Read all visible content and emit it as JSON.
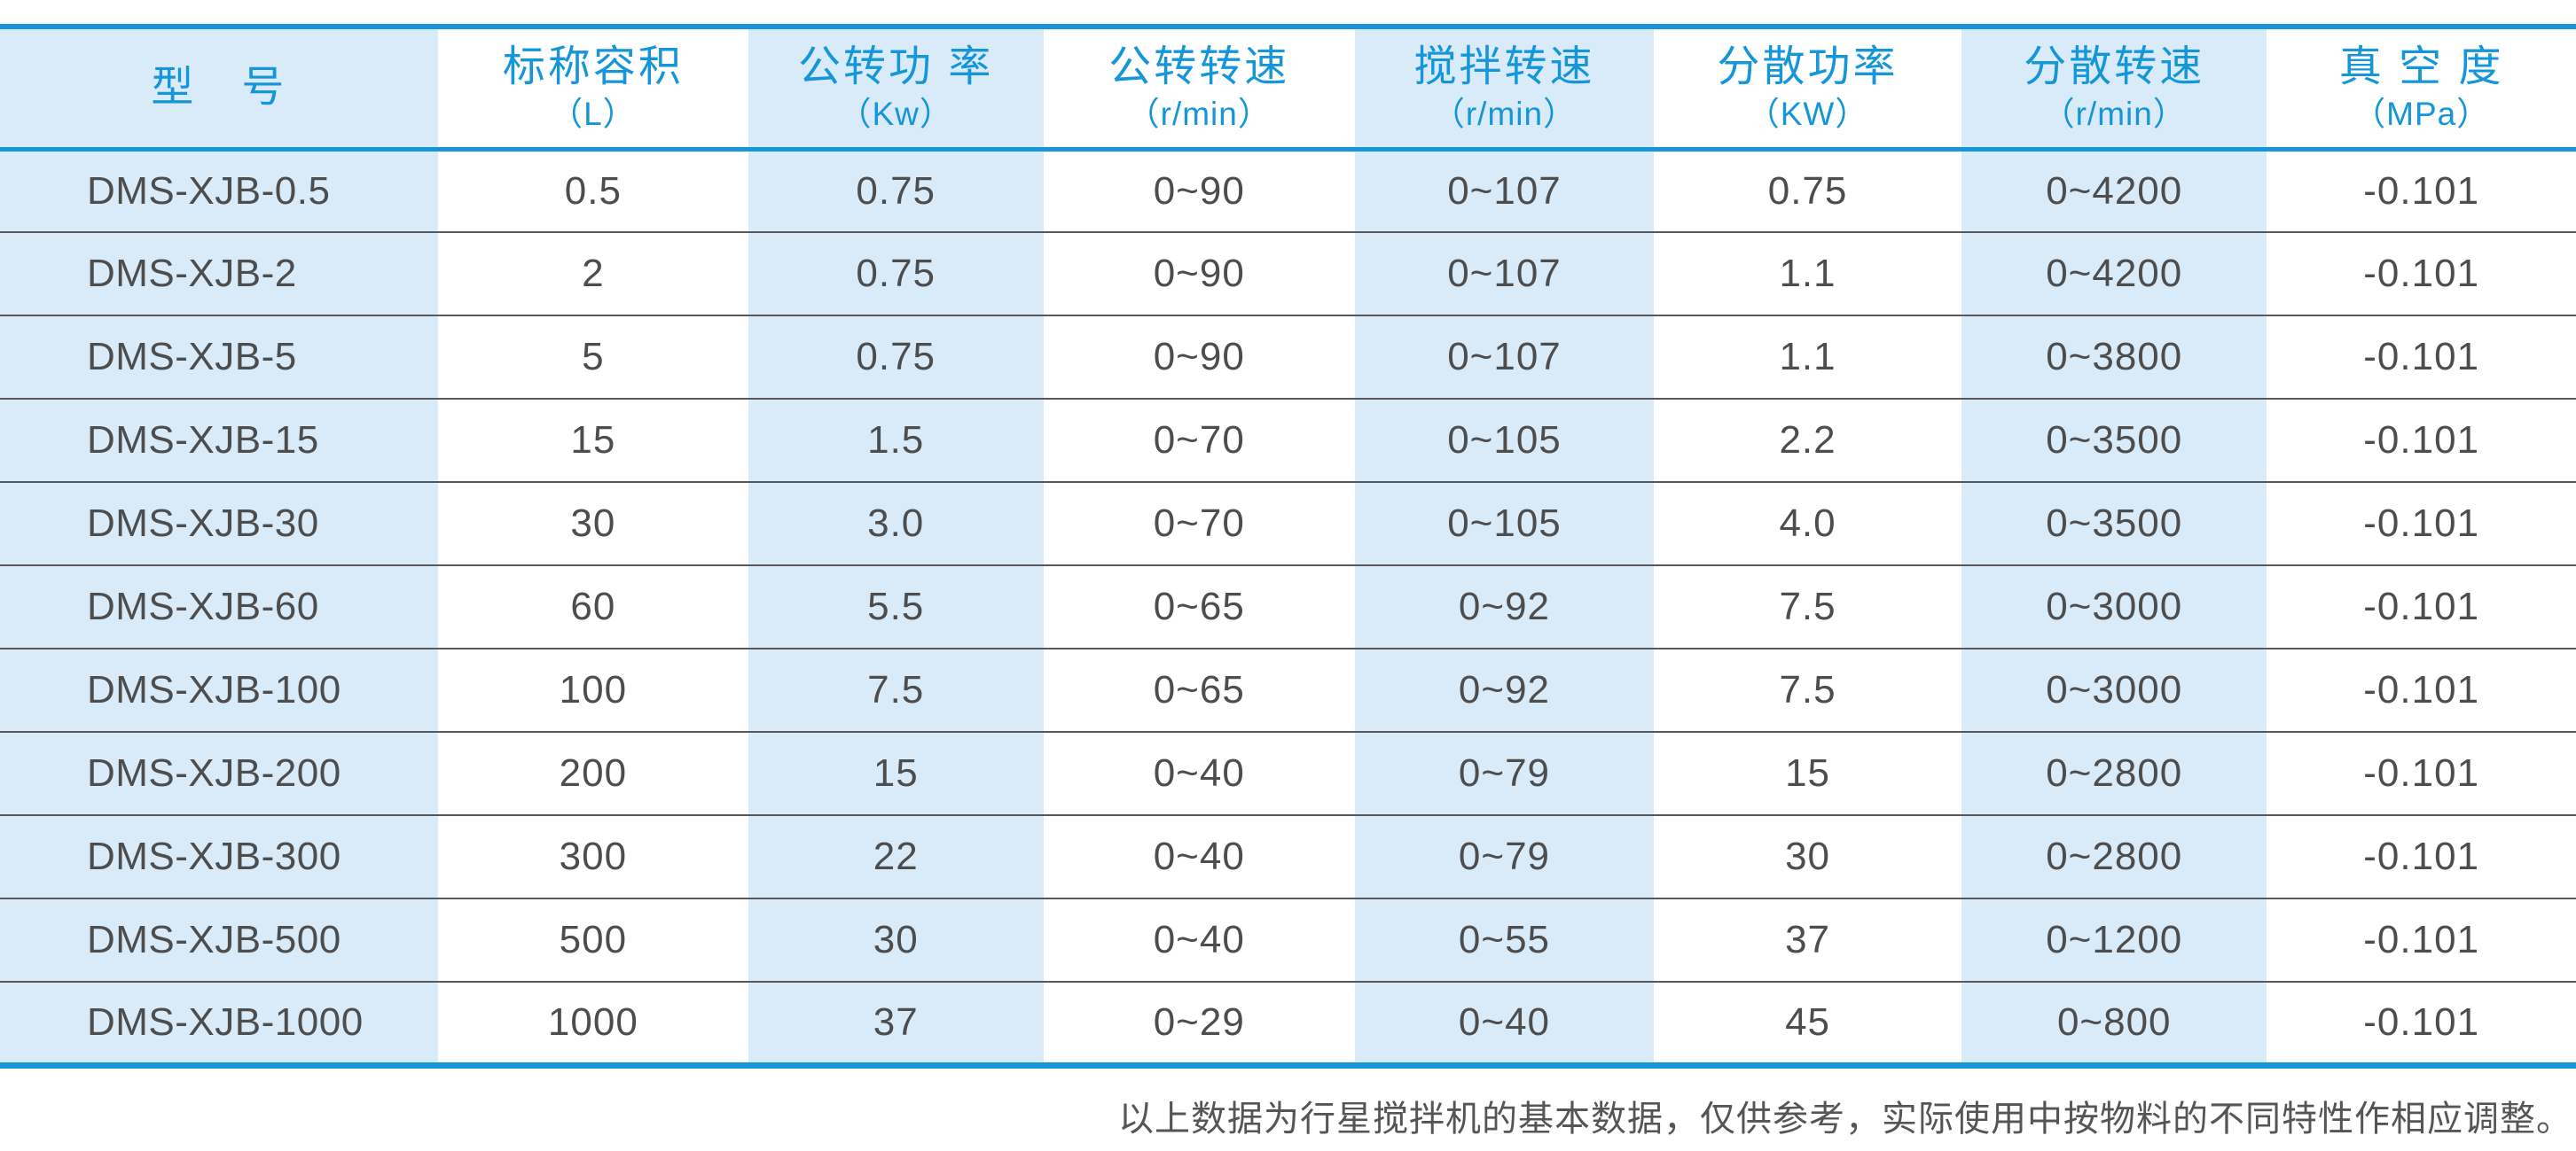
{
  "chart_data": {
    "type": "table",
    "columns": [
      {
        "title": "型　号",
        "unit": ""
      },
      {
        "title": "标称容积",
        "unit": "（L）"
      },
      {
        "title": "公转功 率",
        "unit": "（Kw）"
      },
      {
        "title": "公转转速",
        "unit": "（r/min）"
      },
      {
        "title": "搅拌转速",
        "unit": "（r/min）"
      },
      {
        "title": "分散功率",
        "unit": "（KW）"
      },
      {
        "title": "分散转速",
        "unit": "（r/min）"
      },
      {
        "title": "真 空 度",
        "unit": "（MPa）"
      }
    ],
    "rows": [
      [
        "DMS-XJB-0.5",
        "0.5",
        "0.75",
        "0~90",
        "0~107",
        "0.75",
        "0~4200",
        "-0.101"
      ],
      [
        "DMS-XJB-2",
        "2",
        "0.75",
        "0~90",
        "0~107",
        "1.1",
        "0~4200",
        "-0.101"
      ],
      [
        "DMS-XJB-5",
        "5",
        "0.75",
        "0~90",
        "0~107",
        "1.1",
        "0~3800",
        "-0.101"
      ],
      [
        "DMS-XJB-15",
        "15",
        "1.5",
        "0~70",
        "0~105",
        "2.2",
        "0~3500",
        "-0.101"
      ],
      [
        "DMS-XJB-30",
        "30",
        "3.0",
        "0~70",
        "0~105",
        "4.0",
        "0~3500",
        "-0.101"
      ],
      [
        "DMS-XJB-60",
        "60",
        "5.5",
        "0~65",
        "0~92",
        "7.5",
        "0~3000",
        "-0.101"
      ],
      [
        "DMS-XJB-100",
        "100",
        "7.5",
        "0~65",
        "0~92",
        "7.5",
        "0~3000",
        "-0.101"
      ],
      [
        "DMS-XJB-200",
        "200",
        "15",
        "0~40",
        "0~79",
        "15",
        "0~2800",
        "-0.101"
      ],
      [
        "DMS-XJB-300",
        "300",
        "22",
        "0~40",
        "0~79",
        "30",
        "0~2800",
        "-0.101"
      ],
      [
        "DMS-XJB-500",
        "500",
        "30",
        "0~40",
        "0~55",
        "37",
        "0~1200",
        "-0.101"
      ],
      [
        "DMS-XJB-1000",
        "1000",
        "37",
        "0~29",
        "0~40",
        "45",
        "0~800",
        "-0.101"
      ]
    ],
    "layout": {
      "shaded_column_indexes": [
        0,
        2,
        4,
        6
      ],
      "grid": "horizontal rules between body rows, thick blue rules at top, below header and at bottom",
      "header_position": "top"
    }
  },
  "footer": {
    "note": "以上数据为行星搅拌机的基本数据，仅供参考，实际使用中按物料的不同特性作相应调整。"
  },
  "colors": {
    "accent_blue": "#1496d8",
    "shade_blue": "#d9eaf8",
    "body_text": "#4d4d4d",
    "row_rule": "#58585a"
  }
}
